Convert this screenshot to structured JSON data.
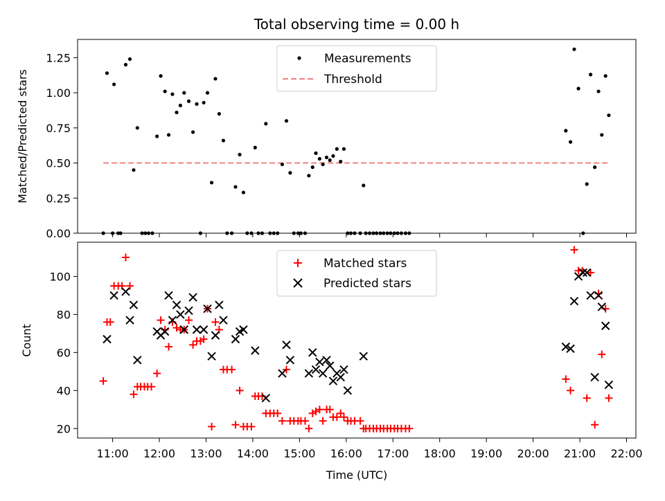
{
  "chart_data": [
    {
      "type": "scatter",
      "title": "Total observing time = 0.00 h",
      "ylabel": "Matched/Predicted stars",
      "ylim": [
        0,
        1.38
      ],
      "xlim": [
        10.25,
        22.2
      ],
      "yticks": [
        "0.00",
        "0.25",
        "0.50",
        "0.75",
        "1.00",
        "1.25"
      ],
      "ytick_values": [
        0,
        0.25,
        0.5,
        0.75,
        1.0,
        1.25
      ],
      "threshold": {
        "value": 0.5,
        "x_start": 10.8,
        "x_end": 21.62,
        "color": "#f08080"
      },
      "legend": [
        {
          "label": "Measurements",
          "marker": "dot",
          "color": "#000000"
        },
        {
          "label": "Threshold",
          "marker": "dashed-line",
          "color": "#f08080"
        }
      ],
      "legend_position": "top-center",
      "series": [
        {
          "name": "Measurements",
          "points": [
            [
              10.8,
              0
            ],
            [
              10.88,
              1.14
            ],
            [
              11.0,
              0
            ],
            [
              11.03,
              1.06
            ],
            [
              11.12,
              0
            ],
            [
              11.17,
              0
            ],
            [
              11.28,
              1.2
            ],
            [
              11.37,
              1.24
            ],
            [
              11.45,
              0.45
            ],
            [
              11.53,
              0.75
            ],
            [
              11.63,
              0
            ],
            [
              11.7,
              0
            ],
            [
              11.77,
              0
            ],
            [
              11.85,
              0
            ],
            [
              11.95,
              0.69
            ],
            [
              12.03,
              1.12
            ],
            [
              12.12,
              1.01
            ],
            [
              12.2,
              0.7
            ],
            [
              12.28,
              0.99
            ],
            [
              12.37,
              0.86
            ],
            [
              12.45,
              0.91
            ],
            [
              12.53,
              1.0
            ],
            [
              12.63,
              0.94
            ],
            [
              12.72,
              0.72
            ],
            [
              12.8,
              0.92
            ],
            [
              12.88,
              0
            ],
            [
              12.95,
              0.93
            ],
            [
              13.03,
              1.0
            ],
            [
              13.12,
              0.36
            ],
            [
              13.2,
              1.1
            ],
            [
              13.28,
              0.85
            ],
            [
              13.37,
              0.66
            ],
            [
              13.45,
              0
            ],
            [
              13.55,
              0
            ],
            [
              13.63,
              0.33
            ],
            [
              13.72,
              0.56
            ],
            [
              13.8,
              0.29
            ],
            [
              13.88,
              0
            ],
            [
              13.97,
              0
            ],
            [
              14.05,
              0.61
            ],
            [
              14.12,
              0
            ],
            [
              14.2,
              0
            ],
            [
              14.28,
              0.78
            ],
            [
              14.37,
              0
            ],
            [
              14.45,
              0
            ],
            [
              14.53,
              0
            ],
            [
              14.63,
              0.49
            ],
            [
              14.72,
              0.8
            ],
            [
              14.8,
              0.43
            ],
            [
              14.88,
              0
            ],
            [
              14.97,
              0
            ],
            [
              15.03,
              0
            ],
            [
              15.12,
              0
            ],
            [
              15.2,
              0.41
            ],
            [
              15.28,
              0.47
            ],
            [
              15.35,
              0.57
            ],
            [
              15.43,
              0.53
            ],
            [
              15.5,
              0.49
            ],
            [
              15.58,
              0.54
            ],
            [
              15.65,
              0.52
            ],
            [
              15.72,
              0.55
            ],
            [
              15.8,
              0.6
            ],
            [
              15.88,
              0.51
            ],
            [
              15.95,
              0.6
            ],
            [
              16.03,
              0
            ],
            [
              16.1,
              0
            ],
            [
              16.18,
              0
            ],
            [
              16.3,
              0
            ],
            [
              16.37,
              0.34
            ],
            [
              16.42,
              0
            ],
            [
              16.5,
              0
            ],
            [
              16.58,
              0
            ],
            [
              16.65,
              0
            ],
            [
              16.73,
              0
            ],
            [
              16.8,
              0
            ],
            [
              16.88,
              0
            ],
            [
              16.95,
              0
            ],
            [
              17.03,
              0
            ],
            [
              17.1,
              0
            ],
            [
              17.18,
              0
            ],
            [
              17.27,
              0
            ],
            [
              17.35,
              0
            ],
            [
              20.7,
              0.73
            ],
            [
              20.8,
              0.65
            ],
            [
              20.88,
              1.31
            ],
            [
              20.97,
              1.03
            ],
            [
              21.07,
              0
            ],
            [
              21.15,
              0.35
            ],
            [
              21.23,
              1.13
            ],
            [
              21.32,
              0.47
            ],
            [
              21.4,
              1.01
            ],
            [
              21.47,
              0.7
            ],
            [
              21.55,
              1.12
            ],
            [
              21.62,
              0.84
            ]
          ]
        }
      ]
    },
    {
      "type": "scatter",
      "xlabel": "Time (UTC)",
      "ylabel": "Count",
      "ylim": [
        15,
        118
      ],
      "xlim": [
        10.25,
        22.2
      ],
      "yticks": [
        "20",
        "40",
        "60",
        "80",
        "100"
      ],
      "ytick_values": [
        20,
        40,
        60,
        80,
        100
      ],
      "xticks": [
        "11:00",
        "12:00",
        "13:00",
        "14:00",
        "15:00",
        "16:00",
        "17:00",
        "18:00",
        "19:00",
        "20:00",
        "21:00",
        "22:00"
      ],
      "xtick_values": [
        11,
        12,
        13,
        14,
        15,
        16,
        17,
        18,
        19,
        20,
        21,
        22
      ],
      "legend": [
        {
          "label": "Matched stars",
          "marker": "plus",
          "color": "#ff0000"
        },
        {
          "label": "Predicted stars",
          "marker": "x",
          "color": "#000000"
        }
      ],
      "legend_position": "top-center",
      "series": [
        {
          "name": "Matched stars",
          "points": [
            [
              10.8,
              45
            ],
            [
              10.88,
              76
            ],
            [
              10.95,
              76
            ],
            [
              11.03,
              95
            ],
            [
              11.12,
              95
            ],
            [
              11.2,
              95
            ],
            [
              11.28,
              110
            ],
            [
              11.37,
              95
            ],
            [
              11.45,
              38
            ],
            [
              11.53,
              42
            ],
            [
              11.6,
              42
            ],
            [
              11.68,
              42
            ],
            [
              11.75,
              42
            ],
            [
              11.83,
              42
            ],
            [
              11.95,
              49
            ],
            [
              12.03,
              77
            ],
            [
              12.12,
              72
            ],
            [
              12.2,
              63
            ],
            [
              12.28,
              76
            ],
            [
              12.37,
              73
            ],
            [
              12.45,
              72
            ],
            [
              12.53,
              72
            ],
            [
              12.63,
              77
            ],
            [
              12.72,
              64
            ],
            [
              12.8,
              66
            ],
            [
              12.88,
              66
            ],
            [
              12.95,
              67
            ],
            [
              13.03,
              83
            ],
            [
              13.12,
              21
            ],
            [
              13.2,
              76
            ],
            [
              13.28,
              72
            ],
            [
              13.37,
              51
            ],
            [
              13.45,
              51
            ],
            [
              13.55,
              51
            ],
            [
              13.63,
              22
            ],
            [
              13.72,
              40
            ],
            [
              13.8,
              21
            ],
            [
              13.88,
              21
            ],
            [
              13.97,
              21
            ],
            [
              14.05,
              37
            ],
            [
              14.12,
              37
            ],
            [
              14.2,
              37
            ],
            [
              14.28,
              28
            ],
            [
              14.37,
              28
            ],
            [
              14.45,
              28
            ],
            [
              14.53,
              28
            ],
            [
              14.63,
              24
            ],
            [
              14.72,
              51
            ],
            [
              14.8,
              24
            ],
            [
              14.88,
              24
            ],
            [
              14.97,
              24
            ],
            [
              15.03,
              24
            ],
            [
              15.12,
              24
            ],
            [
              15.2,
              20
            ],
            [
              15.28,
              28
            ],
            [
              15.35,
              29
            ],
            [
              15.43,
              30
            ],
            [
              15.5,
              24
            ],
            [
              15.58,
              30
            ],
            [
              15.65,
              30
            ],
            [
              15.72,
              26
            ],
            [
              15.8,
              26
            ],
            [
              15.88,
              28
            ],
            [
              15.95,
              26
            ],
            [
              16.03,
              24
            ],
            [
              16.1,
              24
            ],
            [
              16.18,
              24
            ],
            [
              16.3,
              24
            ],
            [
              16.37,
              20
            ],
            [
              16.42,
              20
            ],
            [
              16.5,
              20
            ],
            [
              16.58,
              20
            ],
            [
              16.65,
              20
            ],
            [
              16.73,
              20
            ],
            [
              16.8,
              20
            ],
            [
              16.88,
              20
            ],
            [
              16.95,
              20
            ],
            [
              17.03,
              20
            ],
            [
              17.1,
              20
            ],
            [
              17.18,
              20
            ],
            [
              17.27,
              20
            ],
            [
              17.35,
              20
            ],
            [
              20.7,
              46
            ],
            [
              20.8,
              40
            ],
            [
              20.88,
              114
            ],
            [
              20.97,
              103
            ],
            [
              21.05,
              103
            ],
            [
              21.15,
              36
            ],
            [
              21.23,
              102
            ],
            [
              21.32,
              22
            ],
            [
              21.4,
              91
            ],
            [
              21.47,
              59
            ],
            [
              21.55,
              83
            ],
            [
              21.62,
              36
            ]
          ]
        },
        {
          "name": "Predicted stars",
          "points": [
            [
              10.88,
              67
            ],
            [
              11.03,
              90
            ],
            [
              11.28,
              92
            ],
            [
              11.37,
              77
            ],
            [
              11.45,
              85
            ],
            [
              11.53,
              56
            ],
            [
              11.95,
              71
            ],
            [
              12.03,
              69
            ],
            [
              12.12,
              71
            ],
            [
              12.2,
              90
            ],
            [
              12.28,
              77
            ],
            [
              12.37,
              85
            ],
            [
              12.45,
              80
            ],
            [
              12.53,
              72
            ],
            [
              12.63,
              82
            ],
            [
              12.72,
              89
            ],
            [
              12.8,
              72
            ],
            [
              12.95,
              72
            ],
            [
              13.03,
              83
            ],
            [
              13.12,
              58
            ],
            [
              13.2,
              69
            ],
            [
              13.28,
              85
            ],
            [
              13.37,
              77
            ],
            [
              13.63,
              67
            ],
            [
              13.72,
              71
            ],
            [
              13.8,
              72
            ],
            [
              14.05,
              61
            ],
            [
              14.28,
              36
            ],
            [
              14.63,
              49
            ],
            [
              14.72,
              64
            ],
            [
              14.8,
              56
            ],
            [
              15.2,
              49
            ],
            [
              15.28,
              60
            ],
            [
              15.35,
              51
            ],
            [
              15.43,
              55
            ],
            [
              15.5,
              49
            ],
            [
              15.58,
              56
            ],
            [
              15.65,
              53
            ],
            [
              15.72,
              45
            ],
            [
              15.8,
              49
            ],
            [
              15.88,
              47
            ],
            [
              15.95,
              51
            ],
            [
              16.03,
              40
            ],
            [
              16.37,
              58
            ],
            [
              20.7,
              63
            ],
            [
              20.8,
              62
            ],
            [
              20.88,
              87
            ],
            [
              20.97,
              100
            ],
            [
              21.07,
              102
            ],
            [
              21.15,
              102
            ],
            [
              21.23,
              90
            ],
            [
              21.32,
              47
            ],
            [
              21.4,
              90
            ],
            [
              21.47,
              84
            ],
            [
              21.55,
              74
            ],
            [
              21.62,
              43
            ]
          ]
        }
      ]
    }
  ]
}
